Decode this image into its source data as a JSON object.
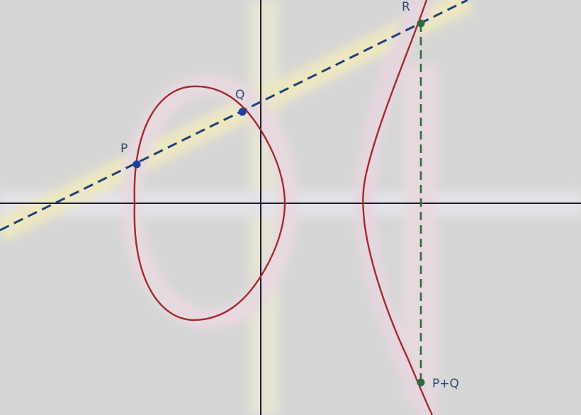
{
  "figure": {
    "background_color": "#d6d6d6",
    "axis_color": "#1a1a2e",
    "curve_color": "#a32a2a",
    "secant_color": "#1f3f78",
    "vertical_color": "#2d6b3a",
    "label_color": "#2c4a6b",
    "curve_name": "elliptic-curve"
  },
  "points": {
    "p": {
      "label": "P",
      "color": "#1f3f9a"
    },
    "q": {
      "label": "Q",
      "color": "#1f3f9a"
    },
    "r": {
      "label": "R",
      "color": "#2d6b3a"
    },
    "sum": {
      "label": "P+Q",
      "color": "#2d6b3a"
    }
  }
}
